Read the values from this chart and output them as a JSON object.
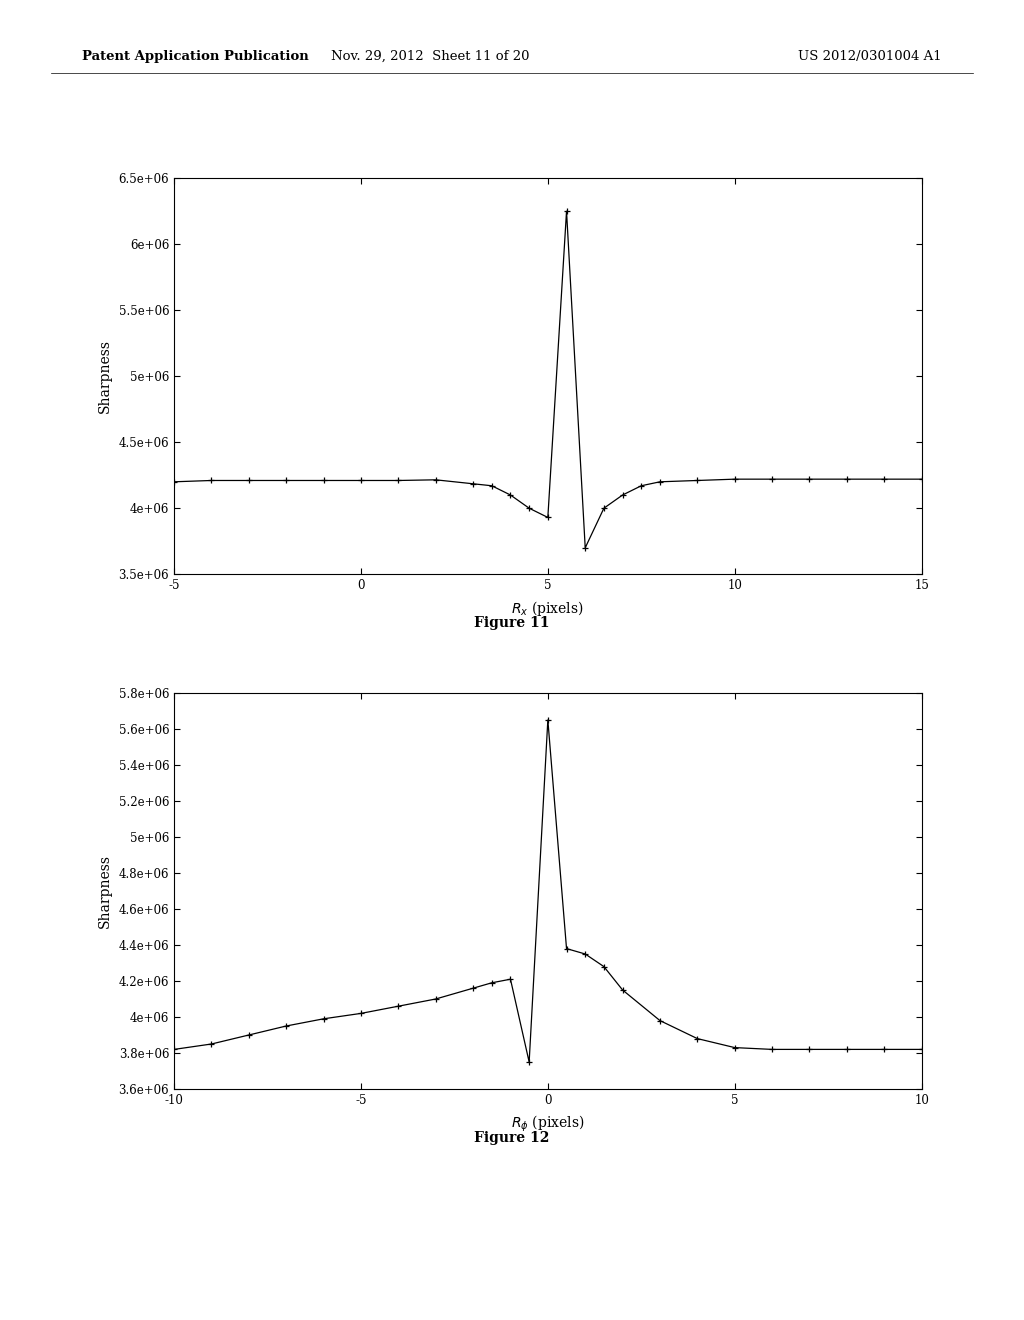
{
  "fig11": {
    "title": "Figure 11",
    "xlabel_latex": "$R_x$ (pixels)",
    "ylabel": "Sharpness",
    "xlim": [
      -5,
      15
    ],
    "ylim": [
      3500000.0,
      6500000.0
    ],
    "xticks": [
      -5,
      0,
      5,
      10,
      15
    ],
    "yticks": [
      3500000.0,
      4000000.0,
      4500000.0,
      5000000.0,
      5500000.0,
      6000000.0,
      6500000.0
    ],
    "ytick_labels": [
      "3.5e+06",
      "4e+06",
      "4.5e+06",
      "5e+06",
      "5.5e+06",
      "6e+06",
      "6.5e+06"
    ],
    "x_data": [
      -5,
      -4,
      -3,
      -2,
      -1,
      0,
      1,
      2,
      3,
      3.5,
      4.0,
      4.5,
      5.0,
      5.5,
      6.0,
      6.5,
      7.0,
      7.5,
      8,
      9,
      10,
      11,
      12,
      13,
      14,
      15
    ],
    "y_data": [
      4200000.0,
      4210000.0,
      4210000.0,
      4210000.0,
      4210000.0,
      4210000.0,
      4210000.0,
      4215000.0,
      4185000.0,
      4170000.0,
      4100000.0,
      4000000.0,
      3930000.0,
      6250000.0,
      3700000.0,
      4000000.0,
      4100000.0,
      4170000.0,
      4200000.0,
      4210000.0,
      4220000.0,
      4220000.0,
      4220000.0,
      4220000.0,
      4220000.0,
      4220000.0
    ]
  },
  "fig12": {
    "title": "Figure 12",
    "xlabel_latex": "$R_\\phi$ (pixels)",
    "ylabel": "Sharpness",
    "xlim": [
      -10,
      10
    ],
    "ylim": [
      3600000.0,
      5800000.0
    ],
    "xticks": [
      -10,
      -5,
      0,
      5,
      10
    ],
    "yticks": [
      3600000.0,
      3800000.0,
      4000000.0,
      4200000.0,
      4400000.0,
      4600000.0,
      4800000.0,
      5000000.0,
      5200000.0,
      5400000.0,
      5600000.0,
      5800000.0
    ],
    "ytick_labels": [
      "3.6e+06",
      "3.8e+06",
      "4e+06",
      "4.2e+06",
      "4.4e+06",
      "4.6e+06",
      "4.8e+06",
      "5e+06",
      "5.2e+06",
      "5.4e+06",
      "5.6e+06",
      "5.8e+06"
    ],
    "x_data": [
      -10,
      -9,
      -8,
      -7,
      -6,
      -5,
      -4,
      -3,
      -2,
      -1.5,
      -1.0,
      -0.5,
      0.0,
      0.5,
      1.0,
      1.5,
      2.0,
      3.0,
      4.0,
      5.0,
      6.0,
      7.0,
      8.0,
      9.0,
      10.0
    ],
    "y_data": [
      3820000.0,
      3850000.0,
      3900000.0,
      3950000.0,
      3990000.0,
      4020000.0,
      4060000.0,
      4100000.0,
      4160000.0,
      4190000.0,
      4210000.0,
      3750000.0,
      5650000.0,
      4380000.0,
      4350000.0,
      4280000.0,
      4150000.0,
      3980000.0,
      3880000.0,
      3830000.0,
      3820000.0,
      3820000.0,
      3820000.0,
      3820000.0,
      3820000.0
    ]
  },
  "header_left": "Patent Application Publication",
  "header_mid": "Nov. 29, 2012  Sheet 11 of 20",
  "header_right": "US 2012/0301004 A1",
  "bg_color": "#ffffff",
  "line_color": "#000000"
}
